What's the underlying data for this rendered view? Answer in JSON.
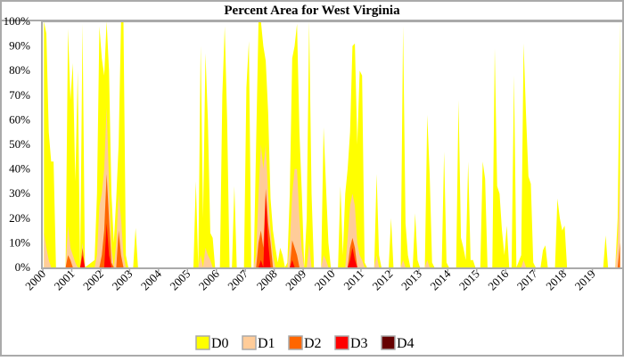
{
  "chart_data": {
    "type": "area",
    "stacked": "cumulative",
    "title": "Percent Area for West Virginia",
    "xlabel": "",
    "ylabel": "",
    "xlim": [
      2000,
      2020
    ],
    "ylim": [
      0,
      100
    ],
    "y_ticks": [
      "0%",
      "10%",
      "20%",
      "30%",
      "40%",
      "50%",
      "60%",
      "70%",
      "80%",
      "90%",
      "100%"
    ],
    "x_ticks": [
      "2000",
      "2001",
      "2002",
      "2003",
      "2004",
      "2005",
      "2006",
      "2007",
      "2008",
      "2009",
      "2010",
      "2011",
      "2012",
      "2013",
      "2014",
      "2015",
      "2016",
      "2017",
      "2018",
      "2019"
    ],
    "grid": false,
    "legend_position": "bottom",
    "series": [
      {
        "name": "D0",
        "color": "#FFFF00"
      },
      {
        "name": "D1",
        "color": "#FFCC99"
      },
      {
        "name": "D2",
        "color": "#FF6600"
      },
      {
        "name": "D3",
        "color": "#FF0000"
      },
      {
        "name": "D4",
        "color": "#660000"
      }
    ],
    "columns": [
      "date",
      "D0",
      "D1",
      "D2",
      "D3",
      "D4"
    ],
    "points": [
      [
        "2000-01",
        100,
        14,
        0,
        0,
        0
      ],
      [
        "2000-02",
        95,
        8,
        0,
        0,
        0
      ],
      [
        "2000-03",
        55,
        3,
        0,
        0,
        0
      ],
      [
        "2000-04",
        43,
        0,
        0,
        0,
        0
      ],
      [
        "2000-05",
        43,
        0,
        0,
        0,
        0
      ],
      [
        "2000-06",
        0,
        0,
        0,
        0,
        0
      ],
      [
        "2000-10",
        0,
        0,
        0,
        0,
        0
      ],
      [
        "2000-11",
        97,
        17,
        5,
        0,
        0
      ],
      [
        "2000-12",
        68,
        8,
        3,
        0,
        0
      ],
      [
        "2001-01",
        83,
        5,
        0,
        0,
        0
      ],
      [
        "2001-02",
        35,
        2,
        0,
        0,
        0
      ],
      [
        "2001-03",
        80,
        0,
        0,
        0,
        0
      ],
      [
        "2001-04",
        0,
        0,
        0,
        0,
        0
      ],
      [
        "2001-05",
        99,
        10,
        8,
        5,
        0
      ],
      [
        "2001-06",
        0,
        0,
        0,
        0,
        0
      ],
      [
        "2001-10",
        3,
        0,
        0,
        0,
        0
      ],
      [
        "2001-11",
        30,
        5,
        0,
        0,
        0
      ],
      [
        "2001-12",
        98,
        25,
        0,
        0,
        0
      ],
      [
        "2002-01",
        85,
        30,
        5,
        0,
        0
      ],
      [
        "2002-02",
        78,
        40,
        15,
        0,
        0
      ],
      [
        "2002-03",
        100,
        65,
        38,
        18,
        0
      ],
      [
        "2002-04",
        80,
        35,
        20,
        5,
        0
      ],
      [
        "2002-05",
        30,
        8,
        2,
        0,
        0
      ],
      [
        "2002-06",
        10,
        0,
        0,
        0,
        0
      ],
      [
        "2002-07",
        28,
        10,
        0,
        0,
        0
      ],
      [
        "2002-08",
        50,
        30,
        15,
        0,
        0
      ],
      [
        "2002-09",
        100,
        20,
        5,
        0,
        0
      ],
      [
        "2002-10",
        100,
        5,
        0,
        0,
        0
      ],
      [
        "2002-11",
        5,
        0,
        0,
        0,
        0
      ],
      [
        "2002-12",
        0,
        0,
        0,
        0,
        0
      ],
      [
        "2003-02",
        0,
        0,
        0,
        0,
        0
      ],
      [
        "2003-03",
        16,
        0,
        0,
        0,
        0
      ],
      [
        "2003-04",
        0,
        0,
        0,
        0,
        0
      ],
      [
        "2005-03",
        0,
        0,
        0,
        0,
        0
      ],
      [
        "2005-04",
        35,
        0,
        0,
        0,
        0
      ],
      [
        "2005-05",
        0,
        0,
        0,
        0,
        0
      ],
      [
        "2005-06",
        90,
        5,
        0,
        0,
        0
      ],
      [
        "2005-07",
        20,
        0,
        0,
        0,
        0
      ],
      [
        "2005-08",
        87,
        8,
        0,
        0,
        0
      ],
      [
        "2005-09",
        60,
        5,
        0,
        0,
        0
      ],
      [
        "2005-10",
        14,
        3,
        0,
        0,
        0
      ],
      [
        "2005-11",
        12,
        0,
        0,
        0,
        0
      ],
      [
        "2005-12",
        0,
        0,
        0,
        0,
        0
      ],
      [
        "2006-02",
        0,
        0,
        0,
        0,
        0
      ],
      [
        "2006-03",
        70,
        0,
        0,
        0,
        0
      ],
      [
        "2006-04",
        98,
        0,
        0,
        0,
        0
      ],
      [
        "2006-05",
        60,
        0,
        0,
        0,
        0
      ],
      [
        "2006-06",
        0,
        0,
        0,
        0,
        0
      ],
      [
        "2006-07",
        0,
        0,
        0,
        0,
        0
      ],
      [
        "2006-08",
        33,
        0,
        0,
        0,
        0
      ],
      [
        "2006-09",
        0,
        0,
        0,
        0,
        0
      ],
      [
        "2006-12",
        0,
        0,
        0,
        0,
        0
      ],
      [
        "2007-01",
        73,
        0,
        0,
        0,
        0
      ],
      [
        "2007-02",
        92,
        0,
        0,
        0,
        0
      ],
      [
        "2007-03",
        0,
        0,
        0,
        0,
        0
      ],
      [
        "2007-04",
        0,
        0,
        0,
        0,
        0
      ],
      [
        "2007-05",
        50,
        5,
        0,
        0,
        0
      ],
      [
        "2007-06",
        100,
        30,
        10,
        0,
        0
      ],
      [
        "2007-07",
        100,
        50,
        15,
        3,
        0
      ],
      [
        "2007-08",
        90,
        40,
        8,
        0,
        0
      ],
      [
        "2007-09",
        84,
        50,
        32,
        30,
        0
      ],
      [
        "2007-10",
        63,
        30,
        18,
        10,
        0
      ],
      [
        "2007-11",
        28,
        15,
        10,
        0,
        0
      ],
      [
        "2007-12",
        15,
        5,
        0,
        0,
        0
      ],
      [
        "2008-01",
        8,
        0,
        0,
        0,
        0
      ],
      [
        "2008-02",
        2,
        0,
        0,
        0,
        0
      ],
      [
        "2008-03",
        8,
        0,
        0,
        0,
        0
      ],
      [
        "2008-04",
        5,
        0,
        0,
        0,
        0
      ],
      [
        "2008-05",
        0,
        0,
        0,
        0,
        0
      ],
      [
        "2008-06",
        2,
        0,
        0,
        0,
        0
      ],
      [
        "2008-07",
        30,
        10,
        0,
        0,
        0
      ],
      [
        "2008-08",
        85,
        30,
        11,
        3,
        0
      ],
      [
        "2008-09",
        90,
        40,
        8,
        0,
        0
      ],
      [
        "2008-10",
        99,
        40,
        5,
        0,
        0
      ],
      [
        "2008-11",
        55,
        20,
        0,
        0,
        0
      ],
      [
        "2008-12",
        30,
        7,
        0,
        0,
        0
      ],
      [
        "2009-01",
        0,
        0,
        0,
        0,
        0
      ],
      [
        "2009-02",
        20,
        0,
        0,
        0,
        0
      ],
      [
        "2009-03",
        100,
        10,
        0,
        0,
        0
      ],
      [
        "2009-04",
        30,
        0,
        0,
        0,
        0
      ],
      [
        "2009-05",
        0,
        0,
        0,
        0,
        0
      ],
      [
        "2009-08",
        0,
        0,
        0,
        0,
        0
      ],
      [
        "2009-09",
        57,
        5,
        0,
        0,
        0
      ],
      [
        "2009-10",
        33,
        3,
        0,
        0,
        0
      ],
      [
        "2009-11",
        10,
        0,
        0,
        0,
        0
      ],
      [
        "2009-12",
        0,
        0,
        0,
        0,
        0
      ],
      [
        "2010-03",
        0,
        0,
        0,
        0,
        0
      ],
      [
        "2010-04",
        33,
        0,
        0,
        0,
        0
      ],
      [
        "2010-05",
        5,
        0,
        0,
        0,
        0
      ],
      [
        "2010-06",
        30,
        0,
        0,
        0,
        0
      ],
      [
        "2010-07",
        40,
        12,
        0,
        0,
        0
      ],
      [
        "2010-08",
        55,
        25,
        8,
        3,
        0
      ],
      [
        "2010-09",
        90,
        30,
        12,
        8,
        0
      ],
      [
        "2010-10",
        91,
        25,
        8,
        3,
        0
      ],
      [
        "2010-11",
        50,
        10,
        0,
        0,
        0
      ],
      [
        "2010-12",
        80,
        5,
        0,
        0,
        0
      ],
      [
        "2011-01",
        78,
        3,
        0,
        0,
        0
      ],
      [
        "2011-02",
        2,
        0,
        0,
        0,
        0
      ],
      [
        "2011-03",
        0,
        0,
        0,
        0,
        0
      ],
      [
        "2011-06",
        0,
        0,
        0,
        0,
        0
      ],
      [
        "2011-07",
        38,
        5,
        0,
        0,
        0
      ],
      [
        "2011-08",
        5,
        0,
        0,
        0,
        0
      ],
      [
        "2011-09",
        0,
        0,
        0,
        0,
        0
      ],
      [
        "2011-12",
        0,
        0,
        0,
        0,
        0
      ],
      [
        "2012-01",
        20,
        0,
        0,
        0,
        0
      ],
      [
        "2012-02",
        0,
        0,
        0,
        0,
        0
      ],
      [
        "2012-05",
        0,
        0,
        0,
        0,
        0
      ],
      [
        "2012-06",
        98,
        3,
        0,
        0,
        0
      ],
      [
        "2012-07",
        18,
        0,
        0,
        0,
        0
      ],
      [
        "2012-08",
        5,
        0,
        0,
        0,
        0
      ],
      [
        "2012-09",
        0,
        0,
        0,
        0,
        0
      ],
      [
        "2012-10",
        0,
        0,
        0,
        0,
        0
      ],
      [
        "2012-11",
        22,
        0,
        0,
        0,
        0
      ],
      [
        "2012-12",
        3,
        0,
        0,
        0,
        0
      ],
      [
        "2013-01",
        0,
        0,
        0,
        0,
        0
      ],
      [
        "2013-03",
        0,
        0,
        0,
        0,
        0
      ],
      [
        "2013-04",
        62,
        3,
        0,
        0,
        0
      ],
      [
        "2013-05",
        38,
        0,
        0,
        0,
        0
      ],
      [
        "2013-06",
        2,
        0,
        0,
        0,
        0
      ],
      [
        "2013-07",
        0,
        0,
        0,
        0,
        0
      ],
      [
        "2013-10",
        0,
        0,
        0,
        0,
        0
      ],
      [
        "2013-11",
        47,
        0,
        0,
        0,
        0
      ],
      [
        "2013-12",
        2,
        0,
        0,
        0,
        0
      ],
      [
        "2014-01",
        0,
        0,
        0,
        0,
        0
      ],
      [
        "2014-04",
        0,
        0,
        0,
        0,
        0
      ],
      [
        "2014-05",
        68,
        0,
        0,
        0,
        0
      ],
      [
        "2014-06",
        12,
        0,
        0,
        0,
        0
      ],
      [
        "2014-07",
        8,
        0,
        0,
        0,
        0
      ],
      [
        "2014-08",
        3,
        0,
        0,
        0,
        0
      ],
      [
        "2014-09",
        43,
        0,
        0,
        0,
        0
      ],
      [
        "2014-10",
        3,
        0,
        0,
        0,
        0
      ],
      [
        "2014-11",
        3,
        0,
        0,
        0,
        0
      ],
      [
        "2014-12",
        0,
        0,
        0,
        0,
        0
      ],
      [
        "2015-02",
        0,
        0,
        0,
        0,
        0
      ],
      [
        "2015-03",
        43,
        0,
        0,
        0,
        0
      ],
      [
        "2015-04",
        36,
        0,
        0,
        0,
        0
      ],
      [
        "2015-05",
        0,
        0,
        0,
        0,
        0
      ],
      [
        "2015-07",
        0,
        0,
        0,
        0,
        0
      ],
      [
        "2015-08",
        89,
        0,
        0,
        0,
        0
      ],
      [
        "2015-09",
        33,
        0,
        0,
        0,
        0
      ],
      [
        "2015-10",
        30,
        0,
        0,
        0,
        0
      ],
      [
        "2015-11",
        15,
        0,
        0,
        0,
        0
      ],
      [
        "2015-12",
        5,
        0,
        0,
        0,
        0
      ],
      [
        "2016-01",
        17,
        0,
        0,
        0,
        0
      ],
      [
        "2016-02",
        0,
        0,
        0,
        0,
        0
      ],
      [
        "2016-03",
        0,
        0,
        0,
        0,
        0
      ],
      [
        "2016-04",
        78,
        0,
        0,
        0,
        0
      ],
      [
        "2016-05",
        0,
        0,
        0,
        0,
        0
      ],
      [
        "2016-07",
        5,
        0,
        0,
        0,
        0
      ],
      [
        "2016-08",
        91,
        3,
        0,
        0,
        0
      ],
      [
        "2016-09",
        62,
        0,
        0,
        0,
        0
      ],
      [
        "2016-10",
        37,
        0,
        0,
        0,
        0
      ],
      [
        "2016-11",
        34,
        0,
        0,
        0,
        0
      ],
      [
        "2016-12",
        2,
        0,
        0,
        0,
        0
      ],
      [
        "2017-01",
        0,
        0,
        0,
        0,
        0
      ],
      [
        "2017-03",
        0,
        0,
        0,
        0,
        0
      ],
      [
        "2017-04",
        7,
        0,
        0,
        0,
        0
      ],
      [
        "2017-05",
        9,
        0,
        0,
        0,
        0
      ],
      [
        "2017-06",
        0,
        0,
        0,
        0,
        0
      ],
      [
        "2017-09",
        0,
        0,
        0,
        0,
        0
      ],
      [
        "2017-10",
        28,
        0,
        0,
        0,
        0
      ],
      [
        "2017-11",
        20,
        0,
        0,
        0,
        0
      ],
      [
        "2017-12",
        15,
        0,
        0,
        0,
        0
      ],
      [
        "2018-01",
        17,
        0,
        0,
        0,
        0
      ],
      [
        "2018-02",
        0,
        0,
        0,
        0,
        0
      ],
      [
        "2019-05",
        0,
        0,
        0,
        0,
        0
      ],
      [
        "2019-06",
        13,
        0,
        0,
        0,
        0
      ],
      [
        "2019-07",
        0,
        0,
        0,
        0,
        0
      ],
      [
        "2019-10",
        0,
        0,
        0,
        0,
        0
      ],
      [
        "2019-11",
        20,
        10,
        0,
        0,
        0
      ],
      [
        "2019-12",
        100,
        40,
        10,
        0,
        0
      ]
    ]
  }
}
